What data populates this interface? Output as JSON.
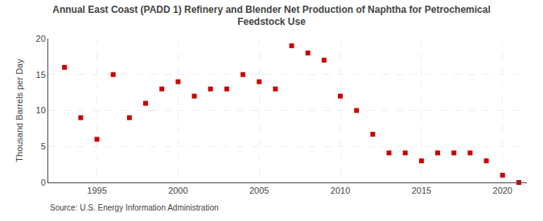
{
  "chart_data": {
    "type": "scatter",
    "title": "Annual East Coast (PADD 1) Refinery and Blender Net Production of Naphtha for Petrochemical\nFeedstock Use",
    "y_label": "Thousand Barrels per Day",
    "annotations": [
      "Source: U.S. Energy Information Administration"
    ],
    "x": [
      1993,
      1994,
      1995,
      1996,
      1997,
      1998,
      1999,
      2000,
      2001,
      2002,
      2003,
      2004,
      2005,
      2006,
      2007,
      2008,
      2009,
      2010,
      2011,
      2012,
      2013,
      2014,
      2015,
      2016,
      2017,
      2018,
      2019,
      2020,
      2021
    ],
    "values": [
      16.0,
      9.0,
      6.0,
      15.0,
      9.0,
      11.0,
      13.0,
      14.0,
      12.0,
      13.0,
      13.0,
      15.0,
      14.0,
      13.0,
      19.0,
      18.0,
      17.0,
      12.0,
      10.0,
      6.7,
      4.1,
      4.1,
      3.0,
      4.1,
      4.1,
      4.1,
      3.0,
      1.0,
      0.0
    ],
    "color": "#cc0000",
    "marker": "square",
    "xlim": [
      1992.0,
      2021.5
    ],
    "xticks": [
      1995,
      2000,
      2005,
      2010,
      2015,
      2020
    ],
    "ylim": [
      0,
      20
    ],
    "yticks": [
      0,
      5,
      10,
      15,
      20
    ],
    "grid": true
  }
}
